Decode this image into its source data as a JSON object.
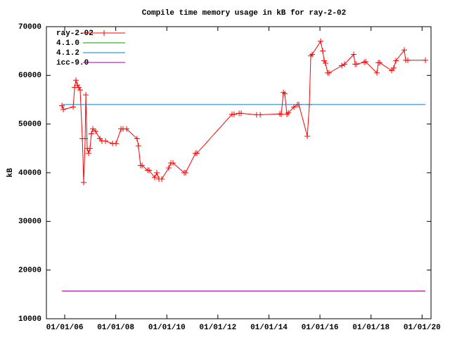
{
  "chart_data": {
    "type": "line",
    "title": "Compile time memory usage in kB for ray-2-02",
    "y_label": "kB",
    "xlim": [
      "04/14/05",
      "05/08/20"
    ],
    "xticks": [
      "01/01/06",
      "01/01/08",
      "01/01/10",
      "01/01/12",
      "01/01/14",
      "01/01/16",
      "01/01/18",
      "01/01/20"
    ],
    "ylim": [
      10000,
      70000
    ],
    "yticks": [
      10000,
      20000,
      30000,
      40000,
      50000,
      60000,
      70000
    ],
    "legend": "top-left",
    "series": [
      {
        "name": "ray-2-02",
        "color": "#ff0000",
        "marker": "+",
        "x": [
          "11/22/05",
          "12/12/05",
          "05/02/06",
          "05/22/06",
          "06/11/06",
          "07/01/06",
          "07/21/06",
          "08/10/06",
          "09/10/06",
          "09/30/06",
          "10/20/06",
          "10/30/06",
          "11/19/06",
          "12/09/06",
          "12/29/06",
          "01/18/07",
          "02/07/07",
          "03/20/07",
          "05/19/07",
          "06/18/07",
          "08/07/07",
          "11/16/07",
          "01/05/08",
          "03/16/08",
          "04/15/08",
          "06/04/08",
          "11/01/08",
          "11/21/08",
          "12/21/08",
          "01/12/09",
          "04/02/09",
          "04/22/09",
          "07/12/09",
          "08/11/09",
          "09/10/09",
          "10/20/09",
          "01/29/10",
          "02/28/10",
          "03/30/10",
          "09/07/10",
          "09/27/10",
          "02/15/11",
          "03/07/11",
          "07/22/12",
          "08/21/12",
          "10/31/12",
          "11/30/12",
          "07/09/13",
          "08/29/13",
          "06/06/14",
          "06/26/14",
          "07/27/14",
          "08/16/14",
          "09/15/14",
          "10/05/14",
          "12/25/14",
          "02/13/15",
          "03/05/15",
          "07/04/15",
          "08/03/15",
          "08/23/15",
          "09/12/15",
          "01/11/16",
          "02/10/16",
          "03/01/16",
          "03/21/16",
          "04/20/16",
          "05/10/16",
          "11/08/16",
          "12/18/16",
          "04/28/17",
          "05/18/17",
          "06/07/17",
          "09/26/17",
          "10/16/17",
          "03/26/18",
          "04/15/18",
          "05/05/18",
          "10/23/18",
          "11/22/18",
          "12/22/18",
          "04/22/19",
          "05/12/19",
          "06/11/19",
          "02/18/20"
        ],
        "values": [
          53800,
          53000,
          53500,
          57500,
          59000,
          58000,
          57500,
          57000,
          47000,
          38000,
          47000,
          56000,
          45000,
          44000,
          45000,
          48000,
          49000,
          48500,
          47000,
          46500,
          46500,
          46000,
          46000,
          49000,
          49000,
          49000,
          47000,
          45500,
          41500,
          41500,
          40500,
          40500,
          39000,
          40000,
          38700,
          38700,
          41000,
          42000,
          42000,
          40000,
          40000,
          44000,
          44000,
          52000,
          52000,
          52200,
          52200,
          51900,
          51900,
          52100,
          52000,
          56500,
          56200,
          52000,
          52300,
          53500,
          54000,
          54000,
          47500,
          54000,
          64000,
          64300,
          67000,
          65000,
          63000,
          62500,
          60500,
          60500,
          62000,
          62300,
          64300,
          62300,
          62300,
          62700,
          62800,
          60500,
          62600,
          62600,
          61000,
          61500,
          63000,
          65200,
          63100,
          63100,
          63100
        ]
      },
      {
        "name": "4.1.0",
        "color": "#00a000",
        "x": [],
        "values": []
      },
      {
        "name": "4.1.2",
        "color": "#0080c0",
        "x": [
          "11/22/05",
          "02/18/20"
        ],
        "values": [
          54000,
          54000
        ]
      },
      {
        "name": "icc-9.0",
        "color": "#a000a0",
        "x": [
          "11/22/05",
          "02/18/20"
        ],
        "values": [
          15700,
          15700
        ]
      }
    ]
  }
}
